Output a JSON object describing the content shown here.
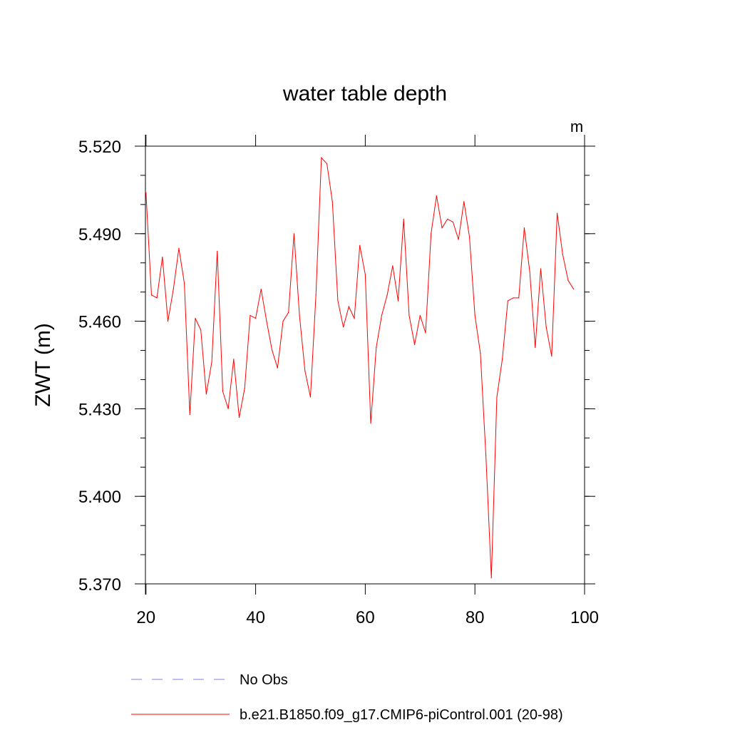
{
  "chart_data": {
    "type": "line",
    "title": "water table depth",
    "ylabel": "ZWT  (m)",
    "xlabel": "",
    "units_label": "m",
    "xlim": [
      19.9,
      100
    ],
    "ylim": [
      5.37,
      5.52
    ],
    "xticks": [
      20,
      40,
      60,
      80,
      100
    ],
    "xtick_labels": [
      "20",
      "40",
      "60",
      "80",
      "100"
    ],
    "yticks": [
      5.37,
      5.4,
      5.43,
      5.46,
      5.49,
      5.52
    ],
    "ytick_labels": [
      "5.370",
      "5.400",
      "5.430",
      "5.460",
      "5.490",
      "5.520"
    ],
    "grid": false,
    "legend_position": "bottom",
    "series": [
      {
        "name": "No Obs",
        "color": "#7f7fe6",
        "dashed": true,
        "values": []
      },
      {
        "name": "b.e21.B1850.f09_g17.CMIP6-piControl.001 (20-98)",
        "color": "#ff0000",
        "dashed": false,
        "x": [
          20,
          21,
          22,
          23,
          24,
          25,
          26,
          27,
          28,
          29,
          30,
          31,
          32,
          33,
          34,
          35,
          36,
          37,
          38,
          39,
          40,
          41,
          42,
          43,
          44,
          45,
          46,
          47,
          48,
          49,
          50,
          51,
          52,
          53,
          54,
          55,
          56,
          57,
          58,
          59,
          60,
          61,
          62,
          63,
          64,
          65,
          66,
          67,
          68,
          69,
          70,
          71,
          72,
          73,
          74,
          75,
          76,
          77,
          78,
          79,
          80,
          81,
          82,
          83,
          84,
          85,
          86,
          87,
          88,
          89,
          90,
          91,
          92,
          93,
          94,
          95,
          96,
          97,
          98
        ],
        "values": [
          5.504,
          5.469,
          5.468,
          5.482,
          5.46,
          5.471,
          5.485,
          5.473,
          5.428,
          5.461,
          5.457,
          5.435,
          5.446,
          5.484,
          5.436,
          5.43,
          5.447,
          5.427,
          5.437,
          5.462,
          5.461,
          5.471,
          5.46,
          5.45,
          5.444,
          5.46,
          5.463,
          5.49,
          5.462,
          5.443,
          5.434,
          5.469,
          5.516,
          5.514,
          5.501,
          5.467,
          5.458,
          5.465,
          5.461,
          5.486,
          5.476,
          5.425,
          5.451,
          5.462,
          5.469,
          5.479,
          5.467,
          5.495,
          5.462,
          5.452,
          5.462,
          5.456,
          5.49,
          5.503,
          5.492,
          5.495,
          5.494,
          5.488,
          5.501,
          5.489,
          5.462,
          5.449,
          5.414,
          5.372,
          5.434,
          5.447,
          5.467,
          5.468,
          5.468,
          5.492,
          5.477,
          5.451,
          5.478,
          5.458,
          5.448,
          5.497,
          5.483,
          5.474,
          5.471
        ]
      }
    ]
  }
}
